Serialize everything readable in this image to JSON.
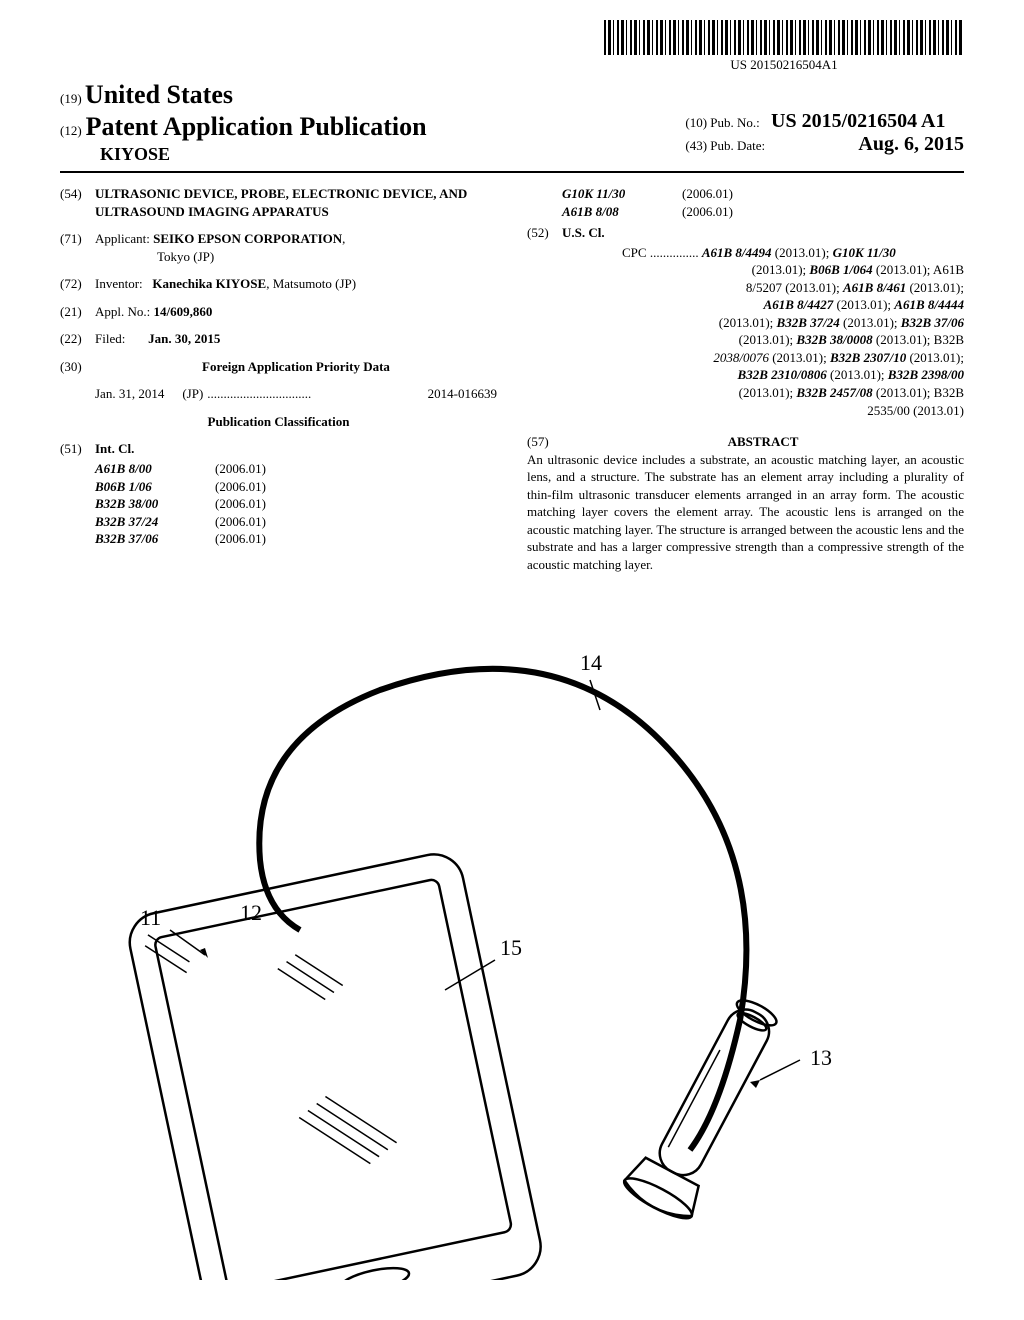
{
  "barcode_text": "US 20150216504A1",
  "header": {
    "line1_num": "(19)",
    "line1_text": "United States",
    "line2_num": "(12)",
    "line2_text": "Patent Application Publication",
    "line3_author": "KIYOSE",
    "pub_no_num": "(10)",
    "pub_no_label": "Pub. No.:",
    "pub_no_value": "US 2015/0216504 A1",
    "pub_date_num": "(43)",
    "pub_date_label": "Pub. Date:",
    "pub_date_value": "Aug. 6, 2015"
  },
  "left": {
    "f54_num": "(54)",
    "f54_title": "ULTRASONIC DEVICE, PROBE, ELECTRONIC DEVICE, AND ULTRASOUND IMAGING APPARATUS",
    "f71_num": "(71)",
    "f71_label": "Applicant:",
    "f71_value": "SEIKO EPSON CORPORATION",
    "f71_loc": "Tokyo (JP)",
    "f72_num": "(72)",
    "f72_label": "Inventor:",
    "f72_value": "Kanechika KIYOSE",
    "f72_loc": ", Matsumoto (JP)",
    "f21_num": "(21)",
    "f21_label": "Appl. No.:",
    "f21_value": "14/609,860",
    "f22_num": "(22)",
    "f22_label": "Filed:",
    "f22_value": "Jan. 30, 2015",
    "f30_num": "(30)",
    "f30_label": "Foreign Application Priority Data",
    "priority_date": "Jan. 31, 2014",
    "priority_cc": "(JP)",
    "priority_dots": "................................",
    "priority_no": "2014-016639",
    "pubclass_hdr": "Publication Classification",
    "f51_num": "(51)",
    "f51_label": "Int. Cl.",
    "intcl": [
      {
        "code": "A61B 8/00",
        "ver": "(2006.01)"
      },
      {
        "code": "B06B 1/06",
        "ver": "(2006.01)"
      },
      {
        "code": "B32B 38/00",
        "ver": "(2006.01)"
      },
      {
        "code": "B32B 37/24",
        "ver": "(2006.01)"
      },
      {
        "code": "B32B 37/06",
        "ver": "(2006.01)"
      }
    ]
  },
  "right": {
    "intcl_cont": [
      {
        "code": "G10K 11/30",
        "ver": "(2006.01)"
      },
      {
        "code": "A61B 8/08",
        "ver": "(2006.01)"
      }
    ],
    "f52_num": "(52)",
    "f52_label": "U.S. Cl.",
    "cpc_prefix": "CPC ...............",
    "cpc_lines": [
      "A61B 8/4494 (2013.01); G10K 11/30",
      "(2013.01); B06B 1/064 (2013.01); A61B",
      "8/5207 (2013.01); A61B 8/461 (2013.01);",
      "A61B 8/4427 (2013.01); A61B 8/4444",
      "(2013.01); B32B 37/24 (2013.01); B32B 37/06",
      "(2013.01); B32B 38/0008 (2013.01); B32B",
      "2038/0076 (2013.01); B32B 2307/10 (2013.01);",
      "B32B 2310/0806 (2013.01); B32B 2398/00",
      "(2013.01); B32B 2457/08 (2013.01); B32B",
      "2535/00 (2013.01)"
    ],
    "f57_num": "(57)",
    "f57_label": "ABSTRACT",
    "abstract": "An ultrasonic device includes a substrate, an acoustic matching layer, an acoustic lens, and a structure. The substrate has an element array including a plurality of thin-film ultrasonic transducer elements arranged in an array form. The acoustic matching layer covers the element array. The acoustic lens is arranged on the acoustic matching layer. The structure is arranged between the acoustic lens and the substrate and has a larger compressive strength than a compressive strength of the acoustic matching layer."
  },
  "figure": {
    "labels": {
      "l11": "11",
      "l12": "12",
      "l13": "13",
      "l14": "14",
      "l15": "15"
    }
  }
}
